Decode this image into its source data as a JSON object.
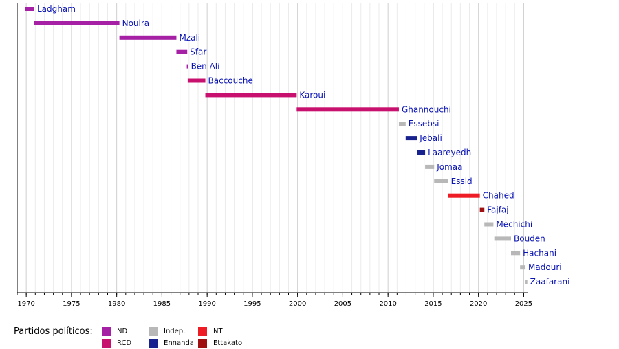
{
  "chart_data": {
    "type": "timeline",
    "xlim": [
      1969.0,
      2025.5
    ],
    "xticks_major": [
      1970,
      1975,
      1980,
      1985,
      1990,
      1995,
      2000,
      2005,
      2010,
      2015,
      2020,
      2025
    ],
    "grid": true,
    "rows": [
      {
        "name": "Ladgham",
        "start": 1969.9,
        "end": 1970.9,
        "party": "ND"
      },
      {
        "name": "Nouira",
        "start": 1970.9,
        "end": 1980.3,
        "party": "ND"
      },
      {
        "name": "Mzali",
        "start": 1980.3,
        "end": 1986.6,
        "party": "ND"
      },
      {
        "name": "Sfar",
        "start": 1986.6,
        "end": 1987.8,
        "party": "ND"
      },
      {
        "name": "Ben Ali",
        "start": 1987.75,
        "end": 1987.85,
        "party": "ND"
      },
      {
        "name": "Baccouche",
        "start": 1987.85,
        "end": 1989.8,
        "party": "RCD"
      },
      {
        "name": "Karoui",
        "start": 1989.8,
        "end": 1999.9,
        "party": "RCD"
      },
      {
        "name": "Ghannouchi",
        "start": 1999.9,
        "end": 2011.2,
        "party": "RCD"
      },
      {
        "name": "Essebsi",
        "start": 2011.2,
        "end": 2011.95,
        "party": "Indep."
      },
      {
        "name": "Jebali",
        "start": 2011.95,
        "end": 2013.2,
        "party": "Ennahda"
      },
      {
        "name": "Laareyedh",
        "start": 2013.2,
        "end": 2014.1,
        "party": "Ennahda"
      },
      {
        "name": "Jomaa",
        "start": 2014.1,
        "end": 2015.1,
        "party": "Indep."
      },
      {
        "name": "Essid",
        "start": 2015.1,
        "end": 2016.65,
        "party": "Indep."
      },
      {
        "name": "Chahed",
        "start": 2016.65,
        "end": 2020.15,
        "party": "NT"
      },
      {
        "name": "Fajfaj",
        "start": 2020.15,
        "end": 2020.65,
        "party": "Ettakatol"
      },
      {
        "name": "Mechichi",
        "start": 2020.65,
        "end": 2021.65,
        "party": "Indep."
      },
      {
        "name": "Bouden",
        "start": 2021.75,
        "end": 2023.6,
        "party": "Indep."
      },
      {
        "name": "Hachani",
        "start": 2023.6,
        "end": 2024.6,
        "party": "Indep."
      },
      {
        "name": "Madouri",
        "start": 2024.6,
        "end": 2025.2,
        "party": "Indep."
      },
      {
        "name": "Zaafarani",
        "start": 2025.2,
        "end": 2025.4,
        "party": "Indep."
      }
    ],
    "legend_title": "Partidos políticos:",
    "parties": [
      {
        "name": "ND",
        "color": "#a520a5"
      },
      {
        "name": "RCD",
        "color": "#c8106e"
      },
      {
        "name": "Indep.",
        "color": "#b8b8b8"
      },
      {
        "name": "Ennahda",
        "color": "#18228e"
      },
      {
        "name": "NT",
        "color": "#ee1c24"
      },
      {
        "name": "Ettakatol",
        "color": "#a00f0f"
      }
    ]
  }
}
